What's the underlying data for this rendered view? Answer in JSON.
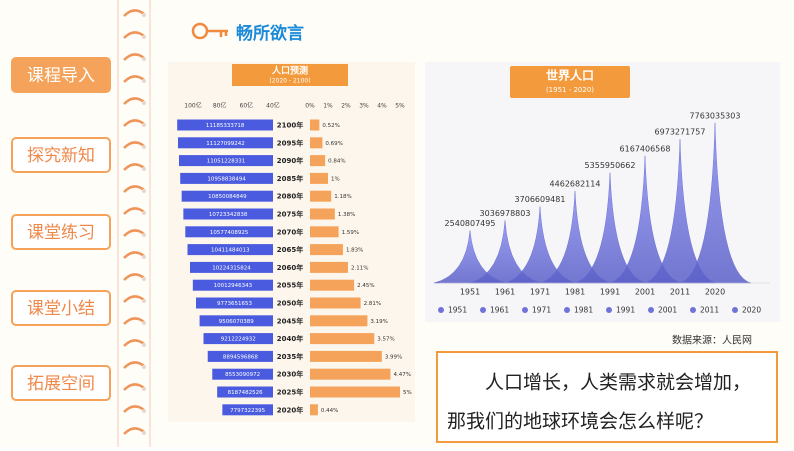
{
  "sidebar": {
    "nav": [
      "课程导入",
      "探究新知",
      "课堂练习",
      "课堂小结",
      "拓展空间"
    ],
    "active": 0
  },
  "header": {
    "title": "畅所欲言"
  },
  "chart_data": [
    {
      "type": "bar",
      "title": "人口预测",
      "subtitle": "(2020 - 2100)",
      "categories": [
        "2100年",
        "2095年",
        "2090年",
        "2085年",
        "2080年",
        "2075年",
        "2070年",
        "2065年",
        "2060年",
        "2055年",
        "2050年",
        "2045年",
        "2040年",
        "2035年",
        "2030年",
        "2025年",
        "2020年"
      ],
      "series": [
        {
          "color": "#4a5be0",
          "xlim": [
            4000000000,
            11500000000
          ],
          "xticks": [
            {
              "value": 10000000000,
              "label": "100亿"
            },
            {
              "value": 8000000000,
              "label": "80亿"
            },
            {
              "value": 6000000000,
              "label": "60亿"
            },
            {
              "value": 4000000000,
              "label": "40亿"
            }
          ],
          "values": [
            11185333718,
            11127099242,
            11051228331,
            10958838494,
            10850084849,
            10723342838,
            10577408925,
            10411484013,
            10224315824,
            10012946343,
            9773651653,
            9506070389,
            9212224932,
            8894596868,
            8553090972,
            8187482526,
            7797322395
          ]
        },
        {
          "color": "#f5a35a",
          "xlim": [
            0,
            5
          ],
          "xticks": [
            {
              "value": 0,
              "label": "0%"
            },
            {
              "value": 1,
              "label": "1%"
            },
            {
              "value": 2,
              "label": "2%"
            },
            {
              "value": 3,
              "label": "3%"
            },
            {
              "value": 4,
              "label": "4%"
            },
            {
              "value": 5,
              "label": "5%"
            }
          ],
          "values": [
            0.52,
            0.69,
            0.84,
            1,
            1.18,
            1.38,
            1.59,
            1.83,
            2.11,
            2.45,
            2.81,
            3.19,
            3.57,
            3.99,
            4.47,
            5,
            0.44
          ],
          "value_labels": [
            "0.52%",
            "0.69%",
            "0.84%",
            "1%",
            "1.18%",
            "1.38%",
            "1.59%",
            "1.83%",
            "2.11%",
            "2.45%",
            "2.81%",
            "3.19%",
            "3.57%",
            "3.99%",
            "4.47%",
            "5%",
            "0.44%"
          ]
        }
      ]
    },
    {
      "type": "area",
      "title": "世界人口",
      "subtitle": "(1951 - 2020)",
      "categories": [
        "1951",
        "1961",
        "1971",
        "1981",
        "1991",
        "2001",
        "2011",
        "2020"
      ],
      "values": [
        2540807495,
        3036978803,
        3706609481,
        4462682114,
        5355950662,
        6167406568,
        6973271757,
        7763035303
      ],
      "color": "#6f73d8",
      "ylim": [
        0,
        8000000000
      ],
      "legend": "bottom"
    }
  ],
  "source": "数据来源：人民网",
  "prompt": {
    "lines": [
      "人口增长，人类需求就会增加，",
      "那我们的地球环境会怎么样呢？"
    ]
  }
}
